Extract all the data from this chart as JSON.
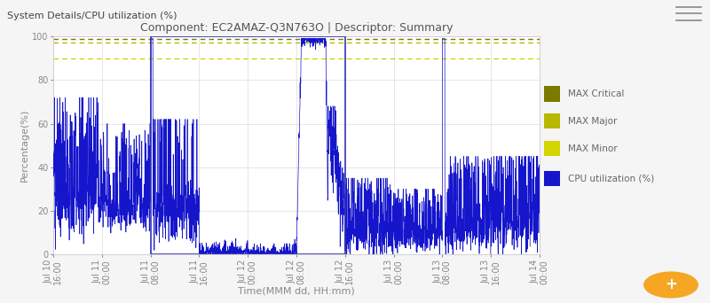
{
  "title": "Component: EC2AMAZ-Q3N763O | Descriptor: Summary",
  "header": "System Details/CPU utilization (%)",
  "xlabel": "Time(MMM dd, HH:mm)",
  "ylabel": "Percentage(%)",
  "ylim": [
    0,
    100
  ],
  "max_critical": 99,
  "max_major": 97,
  "max_minor": 90,
  "threshold_colors": {
    "critical": "#7a7a00",
    "major": "#b8b800",
    "minor": "#d4d400"
  },
  "cpu_color": "#1515cc",
  "fig_bg_color": "#f5f5f5",
  "plot_bg_color": "#ffffff",
  "header_bg_color": "#f0f0f0",
  "tick_labels": [
    "Jul 10\n16:00",
    "Jul 11\n00:00",
    "Jul 11\n08:00",
    "Jul 11\n16:00",
    "Jul 12\n00:00",
    "Jul 12\n08:00",
    "Jul 12\n16:00",
    "Jul 13\n00:00",
    "Jul 13\n08:00",
    "Jul 13\n16:00",
    "Jul 14\n00:00"
  ],
  "legend_labels": [
    "MAX Critical",
    "MAX Major",
    "MAX Minor",
    "CPU utilization (%)"
  ],
  "legend_colors": [
    "#7a7a00",
    "#b8b800",
    "#d4d400",
    "#1515cc"
  ],
  "title_fontsize": 9,
  "axis_label_fontsize": 8,
  "tick_fontsize": 7,
  "legend_fontsize": 7.5,
  "header_fontsize": 8
}
